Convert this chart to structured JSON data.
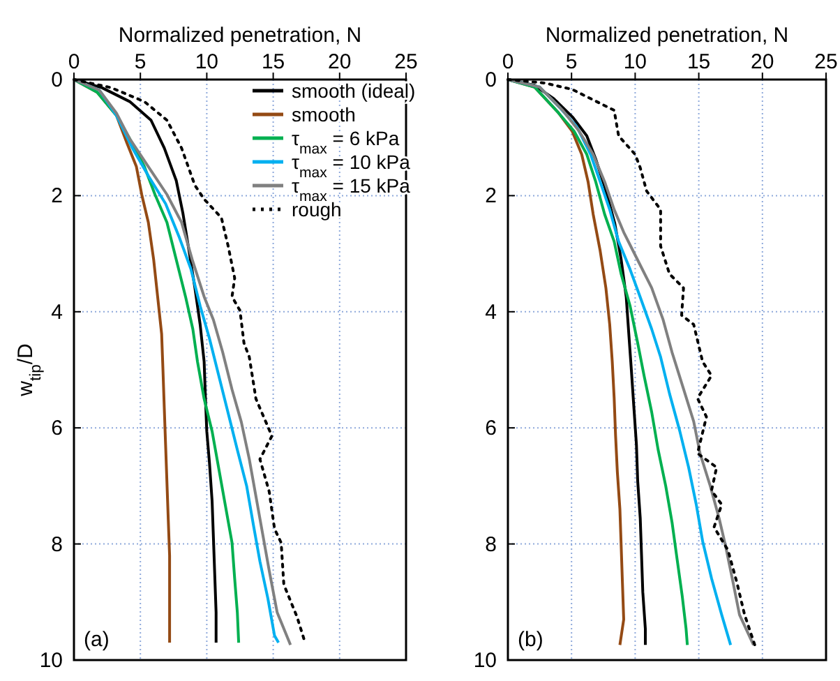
{
  "chart_data": [
    {
      "type": "line",
      "xlabel": "Normalized penetration, N",
      "ylabel": "w$_{tip}$/D",
      "xlim": [
        0,
        25
      ],
      "xticks": [
        0,
        5,
        10,
        15,
        20,
        25
      ],
      "ylim": [
        10,
        0
      ],
      "yticks": [
        0,
        2,
        4,
        6,
        8,
        10
      ],
      "grid": true,
      "legend": "top right",
      "annotations": [
        "(a)"
      ],
      "series": [
        {
          "name": "smooth (ideal)",
          "color": "#000000",
          "line_style": "solid",
          "x": [
            0,
            2.1,
            4.2,
            5.8,
            6.8,
            7.7,
            8.2,
            8.6,
            9.1,
            9.5,
            9.8,
            9.9,
            10.0,
            10.2,
            10.4,
            10.5,
            10.6,
            10.7,
            10.7
          ],
          "values": [
            0,
            0.14,
            0.38,
            0.7,
            1.18,
            1.74,
            2.3,
            2.86,
            3.58,
            4.22,
            4.86,
            5.5,
            6.06,
            6.6,
            7.26,
            7.9,
            8.54,
            9.18,
            9.7
          ]
        },
        {
          "name": "smooth",
          "color": "#944a14",
          "line_style": "solid",
          "x": [
            0,
            1.75,
            3.2,
            4.0,
            4.7,
            5.1,
            5.6,
            6.0,
            6.3,
            6.6,
            6.7,
            6.8,
            6.9,
            7.0,
            7.1,
            7.2,
            7.2,
            7.2
          ],
          "values": [
            0,
            0.22,
            0.62,
            1.1,
            1.5,
            1.98,
            2.46,
            3.1,
            3.74,
            4.38,
            5.0,
            5.66,
            6.3,
            6.94,
            7.58,
            8.2,
            8.86,
            9.7
          ]
        },
        {
          "name": "τ$_{max}$ = 6 kPa",
          "color": "#00b050",
          "line_style": "solid",
          "x": [
            0,
            1.75,
            3.2,
            4.2,
            5.3,
            6.1,
            7.0,
            7.7,
            8.4,
            8.95,
            9.3,
            9.8,
            10.4,
            10.9,
            11.4,
            11.9,
            12.1,
            12.3,
            12.4
          ],
          "values": [
            0,
            0.22,
            0.62,
            1.02,
            1.5,
            1.98,
            2.46,
            3.1,
            3.74,
            4.3,
            4.86,
            5.5,
            6.06,
            6.7,
            7.34,
            7.98,
            8.6,
            9.18,
            9.7
          ]
        },
        {
          "name": "τ$_{max}$ = 10 kPa",
          "color": "#00b0f0",
          "line_style": "solid",
          "x": [
            0,
            1.9,
            3.2,
            4.4,
            5.6,
            6.9,
            7.9,
            8.8,
            9.5,
            10.2,
            10.9,
            11.6,
            12.3,
            13.0,
            13.5,
            14.0,
            14.6,
            15.1,
            15.4
          ],
          "values": [
            0,
            0.18,
            0.62,
            1.18,
            1.66,
            2.14,
            2.7,
            3.26,
            3.9,
            4.46,
            5.1,
            5.74,
            6.38,
            7.0,
            7.66,
            8.3,
            8.94,
            9.58,
            9.7
          ]
        },
        {
          "name": "τ$_{max}$ = 15 kPa",
          "color": "#808080",
          "line_style": "solid",
          "x": [
            0,
            1.9,
            3.2,
            4.2,
            5.6,
            7.0,
            8.1,
            8.9,
            9.8,
            10.5,
            11.2,
            11.9,
            12.6,
            13.2,
            13.7,
            14.2,
            14.7,
            15.3,
            16.3
          ],
          "values": [
            0,
            0.18,
            0.58,
            1.02,
            1.5,
            1.98,
            2.46,
            3.1,
            3.74,
            4.14,
            4.7,
            5.34,
            5.9,
            6.54,
            7.18,
            7.82,
            8.46,
            9.18,
            9.74
          ]
        },
        {
          "name": "rough",
          "color": "#000000",
          "line_style": "dotted",
          "x": [
            0,
            2.8,
            5.3,
            7.0,
            8.1,
            8.6,
            9.1,
            9.8,
            11.1,
            11.6,
            12.1,
            11.9,
            12.5,
            12.8,
            13.2,
            13.7,
            14.9,
            14.0,
            14.7,
            15.1,
            15.6,
            15.8,
            16.8,
            17.4
          ],
          "values": [
            0,
            0.14,
            0.38,
            0.7,
            1.18,
            1.5,
            1.82,
            2.06,
            2.38,
            2.86,
            3.42,
            3.74,
            3.98,
            4.54,
            4.78,
            5.5,
            6.14,
            6.54,
            7.1,
            7.74,
            7.98,
            8.7,
            9.26,
            9.7
          ]
        }
      ]
    },
    {
      "type": "line",
      "xlabel": "Normalized penetration, N",
      "xlim": [
        0,
        25
      ],
      "xticks": [
        0,
        5,
        10,
        15,
        20,
        25
      ],
      "ylim": [
        10,
        0
      ],
      "yticks": [
        0,
        2,
        4,
        6,
        8,
        10
      ],
      "grid": true,
      "annotations": [
        "(b)"
      ],
      "series": [
        {
          "color": "#000000",
          "line_style": "solid",
          "x": [
            0,
            2.1,
            3.6,
            5.1,
            6.2,
            6.9,
            7.6,
            8.4,
            8.9,
            9.3,
            9.5,
            9.7,
            9.9,
            10.1,
            10.2,
            10.4,
            10.5,
            10.6,
            10.8,
            10.8
          ],
          "values": [
            0,
            0.1,
            0.33,
            0.65,
            0.97,
            1.37,
            1.84,
            2.48,
            3.1,
            3.75,
            4.38,
            5.0,
            5.65,
            6.29,
            6.92,
            7.56,
            8.19,
            8.83,
            9.46,
            9.74
          ]
        },
        {
          "color": "#944a14",
          "line_style": "solid",
          "x": [
            0,
            2.1,
            3.96,
            5.05,
            5.8,
            6.3,
            6.7,
            7.25,
            7.7,
            8.0,
            8.2,
            8.35,
            8.46,
            8.6,
            8.8,
            8.9,
            9.0,
            9.1,
            8.8
          ],
          "values": [
            0,
            0.13,
            0.57,
            0.89,
            1.29,
            1.76,
            2.32,
            2.95,
            3.59,
            4.22,
            4.86,
            5.49,
            6.13,
            6.76,
            7.4,
            8.03,
            8.67,
            9.3,
            9.74
          ]
        },
        {
          "color": "#00b050",
          "line_style": "solid",
          "x": [
            0,
            2.1,
            3.96,
            5.2,
            6.2,
            6.9,
            7.6,
            8.35,
            8.9,
            9.6,
            10.2,
            10.7,
            11.3,
            11.8,
            12.4,
            12.9,
            13.3,
            13.7,
            14.0,
            14.1
          ],
          "values": [
            0,
            0.13,
            0.57,
            0.89,
            1.29,
            1.76,
            2.32,
            2.79,
            3.35,
            3.9,
            4.54,
            5.1,
            5.73,
            6.37,
            7.0,
            7.63,
            8.27,
            8.9,
            9.46,
            9.74
          ]
        },
        {
          "color": "#00b0f0",
          "line_style": "solid",
          "x": [
            0,
            2.5,
            4.1,
            5.4,
            6.5,
            7.25,
            8.0,
            8.7,
            9.6,
            10.4,
            11.3,
            12.0,
            12.7,
            13.5,
            14.2,
            14.8,
            15.3,
            16.0,
            16.8,
            17.5
          ],
          "values": [
            0,
            0.13,
            0.49,
            0.81,
            1.29,
            1.76,
            2.24,
            2.79,
            3.27,
            3.75,
            4.3,
            4.78,
            5.41,
            6.05,
            6.68,
            7.32,
            7.95,
            8.59,
            9.22,
            9.74
          ]
        },
        {
          "color": "#808080",
          "line_style": "solid",
          "x": [
            0,
            2.5,
            4.3,
            5.6,
            6.7,
            7.6,
            8.35,
            9.1,
            10.2,
            11.3,
            12.2,
            12.9,
            13.8,
            14.6,
            15.1,
            15.9,
            16.6,
            17.1,
            17.7,
            18.2,
            19.3
          ],
          "values": [
            0,
            0.13,
            0.53,
            0.89,
            1.29,
            1.76,
            2.24,
            2.63,
            3.11,
            3.59,
            4.14,
            4.7,
            5.33,
            5.89,
            6.44,
            7.0,
            7.56,
            8.03,
            8.67,
            9.22,
            9.74
          ]
        },
        {
          "color": "#000000",
          "line_style": "dotted",
          "x": [
            0,
            2.9,
            5.05,
            7.25,
            8.35,
            8.7,
            10.0,
            10.4,
            10.9,
            12.0,
            12.0,
            12.7,
            13.8,
            13.65,
            14.6,
            15.3,
            16.0,
            14.9,
            15.6,
            14.9,
            16.4,
            16.0,
            16.8,
            16.2,
            17.3,
            18.0,
            18.6,
            19.4
          ],
          "values": [
            0,
            0.06,
            0.17,
            0.41,
            0.53,
            0.97,
            1.29,
            1.52,
            1.92,
            2.24,
            2.87,
            3.35,
            3.59,
            4.06,
            4.22,
            4.86,
            5.1,
            5.49,
            5.81,
            6.44,
            6.68,
            7.08,
            7.32,
            7.71,
            8.11,
            8.67,
            9.22,
            9.74
          ]
        }
      ]
    }
  ]
}
